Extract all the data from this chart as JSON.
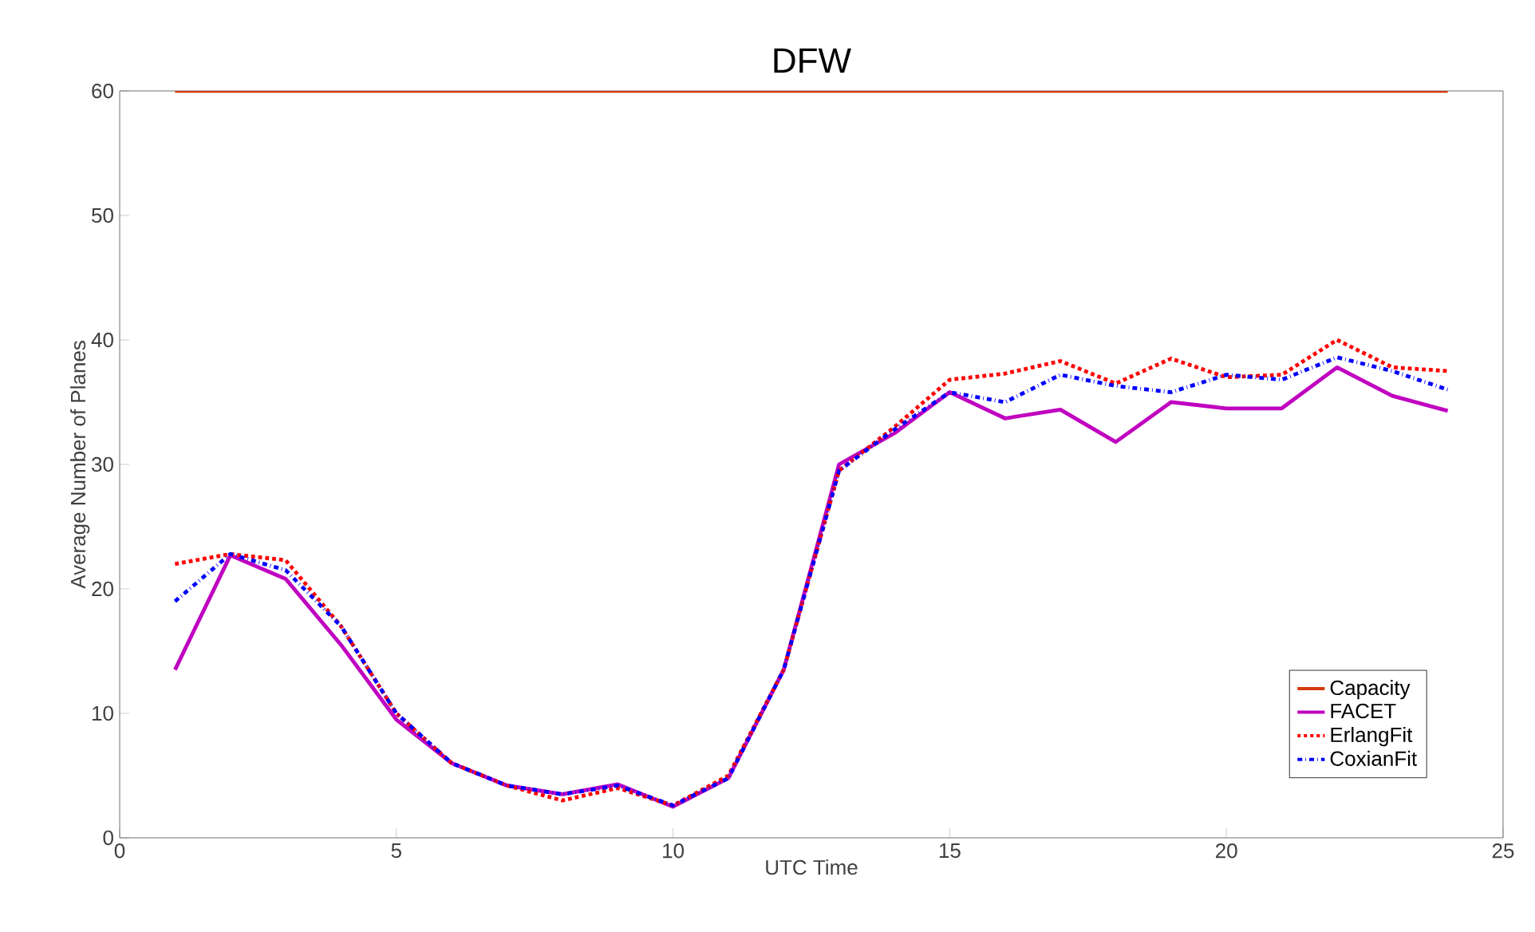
{
  "chart_data": {
    "type": "line",
    "title": "DFW",
    "xlabel": "UTC Time",
    "ylabel": "Average Number of Planes",
    "x": [
      1,
      2,
      3,
      4,
      5,
      6,
      7,
      8,
      9,
      10,
      11,
      12,
      13,
      14,
      15,
      16,
      17,
      18,
      19,
      20,
      21,
      22,
      23,
      24
    ],
    "series": [
      {
        "name": "Capacity",
        "color": "#d63a0b",
        "line_style": "solid",
        "values": [
          60,
          60,
          60,
          60,
          60,
          60,
          60,
          60,
          60,
          60,
          60,
          60,
          60,
          60,
          60,
          60,
          60,
          60,
          60,
          60,
          60,
          60,
          60,
          60
        ]
      },
      {
        "name": "FACET",
        "color": "#c000c0",
        "line_style": "solid",
        "values": [
          13.5,
          22.7,
          20.8,
          15.5,
          9.5,
          6,
          4.2,
          3.5,
          4.3,
          2.5,
          4.8,
          13.5,
          30,
          32.5,
          35.8,
          33.7,
          34.4,
          31.8,
          35,
          34.5,
          34.5,
          37.8,
          35.5,
          34.3
        ]
      },
      {
        "name": "ErlangFit",
        "color": "#ff0000",
        "line_style": "dotted",
        "values": [
          22,
          22.8,
          22.3,
          17,
          10,
          6,
          4.2,
          3,
          4,
          2.6,
          5,
          13.5,
          29.5,
          33,
          36.8,
          37.3,
          38.3,
          36.5,
          38.5,
          37,
          37.2,
          40,
          37.8,
          37.5
        ]
      },
      {
        "name": "CoxianFit",
        "color": "#0000ff",
        "line_style": "dashdot",
        "values": [
          19,
          22.8,
          21.5,
          17,
          10,
          6,
          4.2,
          3.5,
          4.2,
          2.6,
          4.8,
          13.5,
          29.5,
          32.8,
          35.8,
          35,
          37.2,
          36.3,
          35.8,
          37.2,
          36.8,
          38.6,
          37.5,
          36
        ]
      }
    ],
    "xlim": [
      0,
      25
    ],
    "xticks": [
      0,
      5,
      10,
      15,
      20,
      25
    ],
    "ylim": [
      0,
      60
    ],
    "yticks": [
      0,
      10,
      20,
      30,
      40,
      50,
      60
    ],
    "legend": "bottom right",
    "grid": false
  }
}
